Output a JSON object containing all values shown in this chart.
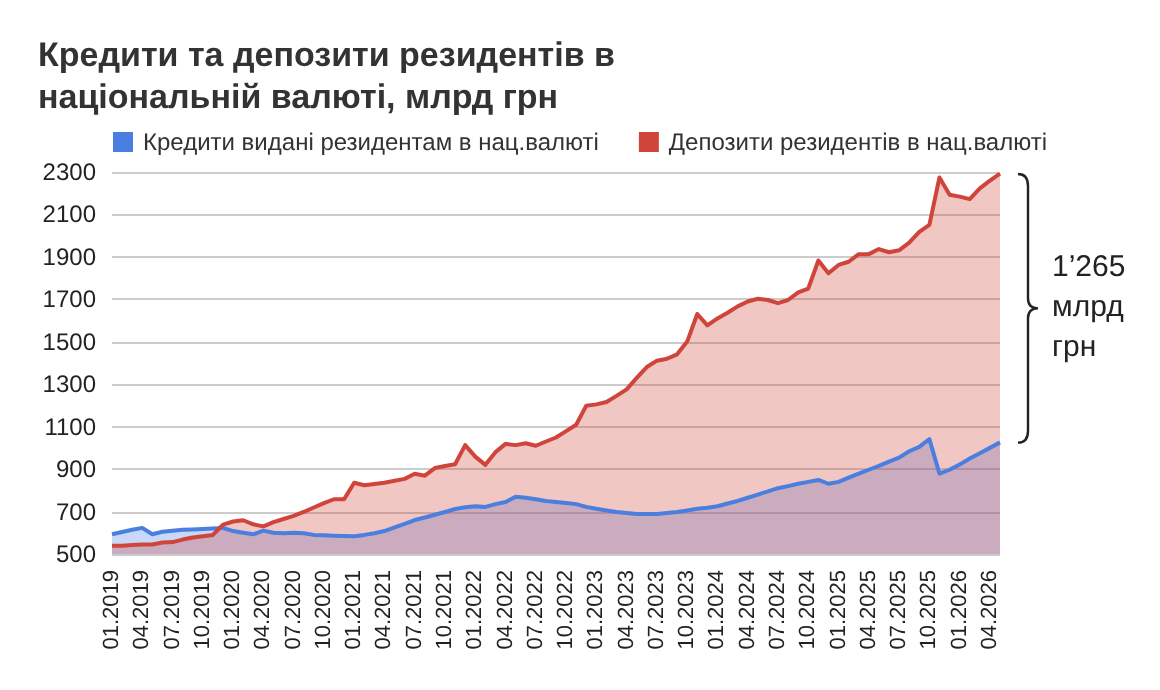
{
  "chart_data": {
    "type": "area",
    "title": "Кредити та депозити резидентів в національній валюті, млрд грн",
    "categories": [
      "01.2019",
      null,
      null,
      "04.2019",
      null,
      null,
      "07.2019",
      null,
      null,
      "10.2019",
      null,
      null,
      "01.2020",
      null,
      null,
      "04.2020",
      null,
      null,
      "07.2020",
      null,
      null,
      "10.2020",
      null,
      null,
      "01.2021",
      null,
      null,
      "04.2021",
      null,
      null,
      "07.2021",
      null,
      null,
      "10.2021",
      null,
      null,
      "01.2022",
      null,
      null,
      "04.2022",
      null,
      null,
      "07.2022",
      null,
      null,
      "10.2022",
      null,
      null,
      "01.2023",
      null,
      null,
      "04.2023",
      null,
      null,
      "07.2023",
      null,
      null,
      "10.2023",
      null,
      null,
      "01.2024",
      null,
      null,
      "04.2024",
      null,
      null,
      "07.2024",
      null,
      null,
      "10.2024",
      null,
      null,
      "01.2025",
      null,
      null,
      "04.2025",
      null,
      null,
      "07.2025",
      null,
      null,
      "10.2025",
      null,
      null,
      "01.2026",
      null,
      null,
      "04.2026",
      null
    ],
    "series": [
      {
        "name": "Кредити видані резидентам в нац.валюті",
        "color": "#4a7fe0",
        "values": [
          593,
          604,
          614,
          623,
          593,
          605,
          610,
          614,
          616,
          618,
          620,
          623,
          608,
          600,
          593,
          610,
          600,
          598,
          600,
          598,
          590,
          588,
          586,
          585,
          584,
          590,
          598,
          608,
          625,
          642,
          660,
          672,
          685,
          698,
          712,
          720,
          725,
          722,
          735,
          745,
          770,
          765,
          758,
          750,
          745,
          740,
          735,
          722,
          713,
          705,
          698,
          693,
          689,
          689,
          689,
          693,
          698,
          705,
          713,
          718,
          725,
          738,
          750,
          765,
          780,
          795,
          810,
          820,
          831,
          840,
          849,
          831,
          840,
          860,
          879,
          897,
          915,
          935,
          954,
          984,
          1005,
          1041,
          879,
          897,
          921,
          950,
          975,
          1000,
          1026
        ]
      },
      {
        "name": "Депозити резидентів в нац.валюті",
        "color": "#d0453b",
        "values": [
          539,
          539,
          542,
          545,
          545,
          554,
          556,
          568,
          578,
          584,
          590,
          638,
          653,
          659,
          640,
          630,
          650,
          665,
          680,
          698,
          719,
          740,
          758,
          758,
          836,
          824,
          830,
          836,
          845,
          854,
          878,
          869,
          905,
          915,
          923,
          1013,
          959,
          920,
          980,
          1019,
          1013,
          1022,
          1010,
          1030,
          1049,
          1079,
          1109,
          1199,
          1205,
          1216,
          1245,
          1276,
          1330,
          1381,
          1411,
          1420,
          1441,
          1501,
          1631,
          1577,
          1610,
          1637,
          1667,
          1690,
          1703,
          1697,
          1682,
          1697,
          1733,
          1751,
          1883,
          1823,
          1862,
          1877,
          1913,
          1913,
          1937,
          1922,
          1931,
          1967,
          2018,
          2051,
          2274,
          2193,
          2184,
          2172,
          2223,
          2259,
          2292
        ]
      }
    ],
    "ylim": [
      500,
      2300
    ],
    "yticks": [
      500,
      700,
      900,
      1100,
      1300,
      1500,
      1700,
      1900,
      2100,
      2300
    ],
    "grid": "y",
    "legend": "top",
    "marker": "none",
    "annotations": [
      "1’265 млрд грн"
    ]
  }
}
